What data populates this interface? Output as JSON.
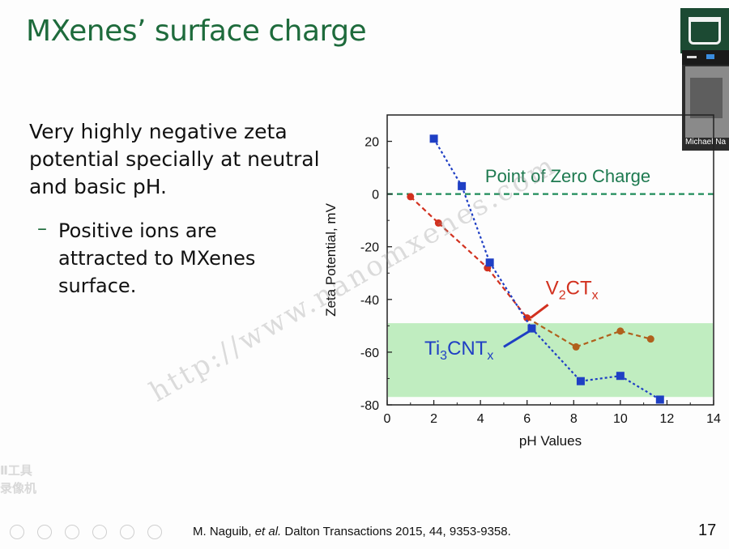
{
  "slide": {
    "title": "MXenes’ surface charge",
    "bullet_main": "Very highly negative zeta potential specially at neutral and basic pH.",
    "bullet_sub_dash": "–",
    "bullet_sub": "Positive ions are attracted to MXenes surface.",
    "citation_author": "M. Naguib, ",
    "citation_etal": "et al.",
    "citation_rest": " Dalton Transactions 2015, 44, 9353-9358.",
    "page_number": "17",
    "watermark": "http://www.nanomxenes.com"
  },
  "webcam": {
    "name": "Michael Na"
  },
  "recorder_overlay": {
    "line1": "Ⅱ工具",
    "line2": "录像机"
  },
  "chart_data": {
    "type": "line",
    "xlabel": "pH Values",
    "ylabel": "Zeta Potential, mV",
    "xlim": [
      0,
      14
    ],
    "ylim": [
      -80,
      30
    ],
    "xticks": [
      0,
      2,
      4,
      6,
      8,
      10,
      12,
      14
    ],
    "yticks": [
      -80,
      -60,
      -40,
      -20,
      0,
      20
    ],
    "grid": false,
    "annotations": {
      "zero_line_label": "Point of Zero Charge",
      "shaded_band": {
        "y_from": -49,
        "y_to": -77,
        "color": "#b9ebb9"
      }
    },
    "series": [
      {
        "name_main": "Ti",
        "name_sub1": "3",
        "name_mid": "CNT",
        "name_sub2": "x",
        "color": "#1f3fc4",
        "marker": "square",
        "x": [
          2.0,
          3.2,
          4.4,
          6.2,
          8.3,
          10.0,
          11.7
        ],
        "y": [
          21,
          3,
          -26,
          -51,
          -71,
          -69,
          -78
        ]
      },
      {
        "name_main": "V",
        "name_sub1": "2",
        "name_mid": "CT",
        "name_sub2": "x",
        "color": "#d2311f",
        "marker": "circle",
        "x": [
          1.0,
          2.2,
          4.3,
          6.0,
          8.1,
          10.0,
          11.3
        ],
        "y": [
          -1,
          -11,
          -28,
          -47,
          -58,
          -52,
          -55
        ]
      }
    ],
    "colors": {
      "zero_line": "#1e8c5a",
      "v2ctx_tail": "#b0601c",
      "title_green": "#1e6b3c"
    }
  }
}
